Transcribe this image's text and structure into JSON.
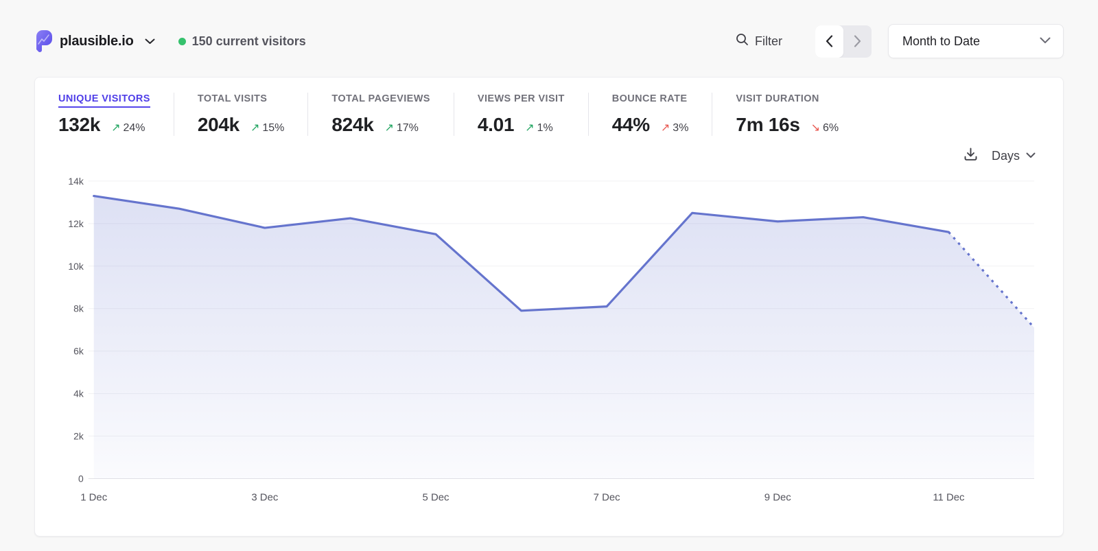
{
  "header": {
    "site_name": "plausible.io",
    "current_visitors": "150 current visitors",
    "filter_label": "Filter",
    "date_range": "Month to Date"
  },
  "stats": {
    "items": [
      {
        "label": "UNIQUE VISITORS",
        "value": "132k",
        "arrow": "↗",
        "change": "24%",
        "trend": "green",
        "active": true
      },
      {
        "label": "TOTAL VISITS",
        "value": "204k",
        "arrow": "↗",
        "change": "15%",
        "trend": "green",
        "active": false
      },
      {
        "label": "TOTAL PAGEVIEWS",
        "value": "824k",
        "arrow": "↗",
        "change": "17%",
        "trend": "green",
        "active": false
      },
      {
        "label": "VIEWS PER VISIT",
        "value": "4.01",
        "arrow": "↗",
        "change": "1%",
        "trend": "green",
        "active": false
      },
      {
        "label": "BOUNCE RATE",
        "value": "44%",
        "arrow": "↗",
        "change": "3%",
        "trend": "red",
        "active": false
      },
      {
        "label": "VISIT DURATION",
        "value": "7m 16s",
        "arrow": "↘",
        "change": "6%",
        "trend": "red",
        "active": false
      }
    ]
  },
  "chart_controls": {
    "interval_label": "Days"
  },
  "chart_data": {
    "type": "area",
    "x": [
      "1 Dec",
      "2 Dec",
      "3 Dec",
      "4 Dec",
      "5 Dec",
      "6 Dec",
      "7 Dec",
      "8 Dec",
      "9 Dec",
      "10 Dec",
      "11 Dec",
      "12 Dec"
    ],
    "values": [
      13300,
      12700,
      11800,
      12250,
      11500,
      7900,
      8100,
      12500,
      12100,
      12300,
      11600,
      7100
    ],
    "incomplete_from_index": 10,
    "ylim": [
      0,
      14000
    ],
    "yticks": [
      0,
      2000,
      4000,
      6000,
      8000,
      10000,
      12000,
      14000
    ],
    "ytick_labels": [
      "0",
      "2k",
      "4k",
      "6k",
      "8k",
      "10k",
      "12k",
      "14k"
    ],
    "xtick_indices": [
      0,
      2,
      4,
      6,
      8,
      10
    ],
    "xtick_labels": [
      "1 Dec",
      "3 Dec",
      "5 Dec",
      "7 Dec",
      "9 Dec",
      "11 Dec"
    ],
    "grid": true,
    "legend": false
  },
  "colors": {
    "accent_indigo": "#4f3ee8",
    "chart_line": "#6574cd",
    "trend_green": "#1fa45f",
    "trend_red": "#e8564f",
    "live_dot_green": "#35c16d",
    "page_background": "#f8f8f8"
  }
}
